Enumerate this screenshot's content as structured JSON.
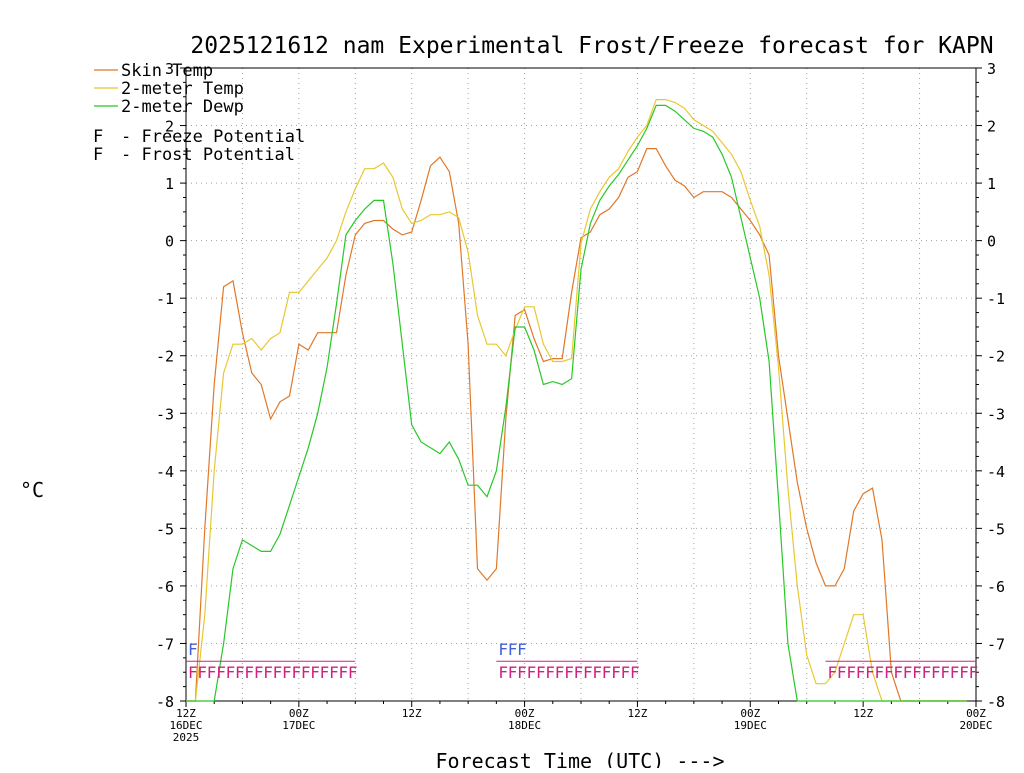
{
  "chart_data": {
    "type": "line",
    "title": "2025121612 nam Experimental Frost/Freeze forecast for KAPN",
    "xlabel": "Forecast Time (UTC) --->",
    "ylabel": "°C",
    "ylim": [
      -8,
      3
    ],
    "xlim": [
      0,
      84
    ],
    "grid": true,
    "legend_position": "top-left",
    "yticks": [
      -8,
      -7,
      -6,
      -5,
      -4,
      -3,
      -2,
      -1,
      0,
      1,
      2,
      3
    ],
    "xticks": [
      {
        "hour": 0,
        "line1": "12Z",
        "line2": "16DEC",
        "line3": "2025"
      },
      {
        "hour": 12,
        "line1": "00Z",
        "line2": "17DEC",
        "line3": ""
      },
      {
        "hour": 24,
        "line1": "12Z",
        "line2": "",
        "line3": ""
      },
      {
        "hour": 36,
        "line1": "00Z",
        "line2": "18DEC",
        "line3": ""
      },
      {
        "hour": 48,
        "line1": "12Z",
        "line2": "",
        "line3": ""
      },
      {
        "hour": 60,
        "line1": "00Z",
        "line2": "19DEC",
        "line3": ""
      },
      {
        "hour": 72,
        "line1": "12Z",
        "line2": "",
        "line3": ""
      },
      {
        "hour": 84,
        "line1": "00Z",
        "line2": "20DEC",
        "line3": ""
      }
    ],
    "series": [
      {
        "name": "Skin Temp",
        "color": "#e07828",
        "x": [
          0,
          1,
          2,
          3,
          4,
          5,
          6,
          7,
          8,
          9,
          10,
          11,
          12,
          13,
          14,
          15,
          16,
          17,
          18,
          19,
          20,
          21,
          22,
          23,
          24,
          25,
          26,
          27,
          28,
          29,
          30,
          31,
          32,
          33,
          34,
          35,
          36,
          37,
          38,
          39,
          40,
          41,
          42,
          43,
          44,
          45,
          46,
          47,
          48,
          49,
          50,
          51,
          52,
          53,
          54,
          55,
          56,
          57,
          58,
          59,
          60,
          61,
          62,
          63,
          64,
          65,
          66,
          67,
          68,
          69,
          70,
          71,
          72,
          73,
          74,
          75,
          76,
          77,
          78,
          79,
          80,
          81,
          82,
          83
        ],
        "values": [
          -8.0,
          -8.0,
          -5.0,
          -2.5,
          -0.8,
          -0.7,
          -1.6,
          -2.3,
          -2.5,
          -3.1,
          -2.8,
          -2.7,
          -1.8,
          -1.9,
          -1.6,
          -1.6,
          -1.6,
          -0.6,
          0.1,
          0.3,
          0.35,
          0.35,
          0.2,
          0.1,
          0.15,
          0.7,
          1.3,
          1.45,
          1.2,
          0.3,
          -1.8,
          -5.7,
          -5.9,
          -5.7,
          -3.1,
          -1.3,
          -1.2,
          -1.7,
          -2.1,
          -2.05,
          -2.05,
          -0.9,
          0.05,
          0.15,
          0.45,
          0.55,
          0.75,
          1.1,
          1.2,
          1.6,
          1.6,
          1.3,
          1.05,
          0.95,
          0.75,
          0.85,
          0.85,
          0.85,
          0.75,
          0.55,
          0.35,
          0.1,
          -0.25,
          -2.0,
          -3.1,
          -4.2,
          -5.0,
          -5.6,
          -6.0,
          -6.0,
          -5.7,
          -4.7,
          -4.4,
          -4.3,
          -5.2,
          -7.5,
          -8.0,
          -8.0,
          -8.0,
          -8.0,
          -8.0,
          -8.0,
          -8.0,
          -8.0
        ]
      },
      {
        "name": "2-meter Temp",
        "color": "#e8c830",
        "x": [
          0,
          1,
          2,
          3,
          4,
          5,
          6,
          7,
          8,
          9,
          10,
          11,
          12,
          13,
          14,
          15,
          16,
          17,
          18,
          19,
          20,
          21,
          22,
          23,
          24,
          25,
          26,
          27,
          28,
          29,
          30,
          31,
          32,
          33,
          34,
          35,
          36,
          37,
          38,
          39,
          40,
          41,
          42,
          43,
          44,
          45,
          46,
          47,
          48,
          49,
          50,
          51,
          52,
          53,
          54,
          55,
          56,
          57,
          58,
          59,
          60,
          61,
          62,
          63,
          64,
          65,
          66,
          67,
          68,
          69,
          70,
          71,
          72,
          73,
          74,
          75,
          76,
          77,
          78,
          79,
          80,
          81,
          82,
          83
        ],
        "values": [
          -8.0,
          -8.0,
          -6.5,
          -4.0,
          -2.3,
          -1.8,
          -1.8,
          -1.7,
          -1.9,
          -1.7,
          -1.6,
          -0.9,
          -0.9,
          -0.7,
          -0.5,
          -0.3,
          0.0,
          0.5,
          0.9,
          1.25,
          1.25,
          1.35,
          1.1,
          0.55,
          0.3,
          0.35,
          0.45,
          0.45,
          0.5,
          0.4,
          -0.2,
          -1.3,
          -1.8,
          -1.8,
          -2.0,
          -1.55,
          -1.15,
          -1.15,
          -1.8,
          -2.1,
          -2.1,
          -2.05,
          -0.05,
          0.55,
          0.85,
          1.1,
          1.25,
          1.55,
          1.8,
          2.0,
          2.45,
          2.45,
          2.4,
          2.3,
          2.1,
          2.0,
          1.9,
          1.7,
          1.5,
          1.2,
          0.7,
          0.25,
          -0.6,
          -2.2,
          -4.3,
          -6.0,
          -7.2,
          -7.7,
          -7.7,
          -7.5,
          -7.0,
          -6.5,
          -6.5,
          -7.5,
          -8.0,
          -8.0,
          -8.0,
          -8.0,
          -8.0,
          -8.0,
          -8.0,
          -8.0,
          -8.0,
          -8.0
        ]
      },
      {
        "name": "2-meter Dewp",
        "color": "#28c828",
        "x": [
          0,
          1,
          2,
          3,
          4,
          5,
          6,
          7,
          8,
          9,
          10,
          11,
          12,
          13,
          14,
          15,
          16,
          17,
          18,
          19,
          20,
          21,
          22,
          23,
          24,
          25,
          26,
          27,
          28,
          29,
          30,
          31,
          32,
          33,
          34,
          35,
          36,
          37,
          38,
          39,
          40,
          41,
          42,
          43,
          44,
          45,
          46,
          47,
          48,
          49,
          50,
          51,
          52,
          53,
          54,
          55,
          56,
          57,
          58,
          59,
          60,
          61,
          62,
          63,
          64,
          65,
          66,
          67,
          68,
          69,
          70,
          71,
          72,
          73,
          74,
          75,
          76,
          77,
          78,
          79,
          80,
          81,
          82,
          83
        ],
        "values": [
          -8.0,
          -8.0,
          -8.0,
          -8.0,
          -7.0,
          -5.7,
          -5.2,
          -5.3,
          -5.4,
          -5.4,
          -5.1,
          -4.6,
          -4.1,
          -3.6,
          -3.0,
          -2.2,
          -1.1,
          0.1,
          0.35,
          0.55,
          0.7,
          0.7,
          -0.4,
          -1.8,
          -3.2,
          -3.5,
          -3.6,
          -3.7,
          -3.5,
          -3.8,
          -4.25,
          -4.25,
          -4.45,
          -4.0,
          -2.9,
          -1.5,
          -1.5,
          -1.9,
          -2.5,
          -2.45,
          -2.5,
          -2.4,
          -0.5,
          0.3,
          0.7,
          0.95,
          1.15,
          1.4,
          1.65,
          1.95,
          2.35,
          2.35,
          2.25,
          2.1,
          1.95,
          1.9,
          1.8,
          1.5,
          1.1,
          0.4,
          -0.3,
          -1.0,
          -2.1,
          -4.5,
          -7.0,
          -8.0,
          -8.0,
          -8.0,
          -8.0,
          -8.0,
          -8.0,
          -8.0,
          -8.0,
          -8.0,
          -8.0,
          -8.0,
          -8.0,
          -8.0,
          -8.0,
          -8.0,
          -8.0,
          -8.0,
          -8.0,
          -8.0
        ]
      }
    ],
    "potential_legend": [
      {
        "symbol": "F",
        "label": "Freeze Potential",
        "color": "#d02080"
      },
      {
        "symbol": "F",
        "label": "Frost Potential",
        "color": "#4060d8"
      }
    ],
    "freeze_potential": {
      "symbol": "F",
      "color": "#d02080",
      "level": -7.5,
      "spans": [
        [
          0,
          18
        ],
        [
          33,
          48
        ],
        [
          68,
          84
        ]
      ]
    },
    "frost_potential": {
      "symbol": "F",
      "color": "#4060d8",
      "level": -7.1,
      "hours": [
        0,
        33,
        34,
        35
      ]
    }
  }
}
